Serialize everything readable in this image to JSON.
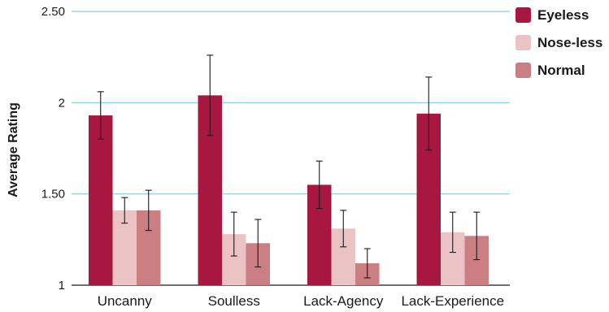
{
  "chart_data": {
    "type": "bar",
    "title": "",
    "xlabel": "",
    "ylabel": "Average Rating",
    "ylim": [
      1,
      2.5
    ],
    "yticks": [
      {
        "value": 1,
        "label": "1"
      },
      {
        "value": 1.5,
        "label": "1.50"
      },
      {
        "value": 2,
        "label": "2"
      },
      {
        "value": 2.5,
        "label": "2.50"
      }
    ],
    "grid": true,
    "legend_position": "top-right",
    "categories": [
      "Uncanny",
      "Soulless",
      "Lack-Agency",
      "Lack-Experience"
    ],
    "series": [
      {
        "name": "Eyeless",
        "color": "#a8173f",
        "values": [
          1.93,
          2.04,
          1.55,
          1.94
        ],
        "errors": [
          0.13,
          0.22,
          0.13,
          0.2
        ]
      },
      {
        "name": "Nose-less",
        "color": "#ecc3c4",
        "values": [
          1.41,
          1.28,
          1.31,
          1.29
        ],
        "errors": [
          0.07,
          0.12,
          0.1,
          0.11
        ]
      },
      {
        "name": "Normal",
        "color": "#cc7f82",
        "values": [
          1.41,
          1.23,
          1.12,
          1.27
        ],
        "errors": [
          0.11,
          0.13,
          0.08,
          0.13
        ]
      }
    ]
  }
}
